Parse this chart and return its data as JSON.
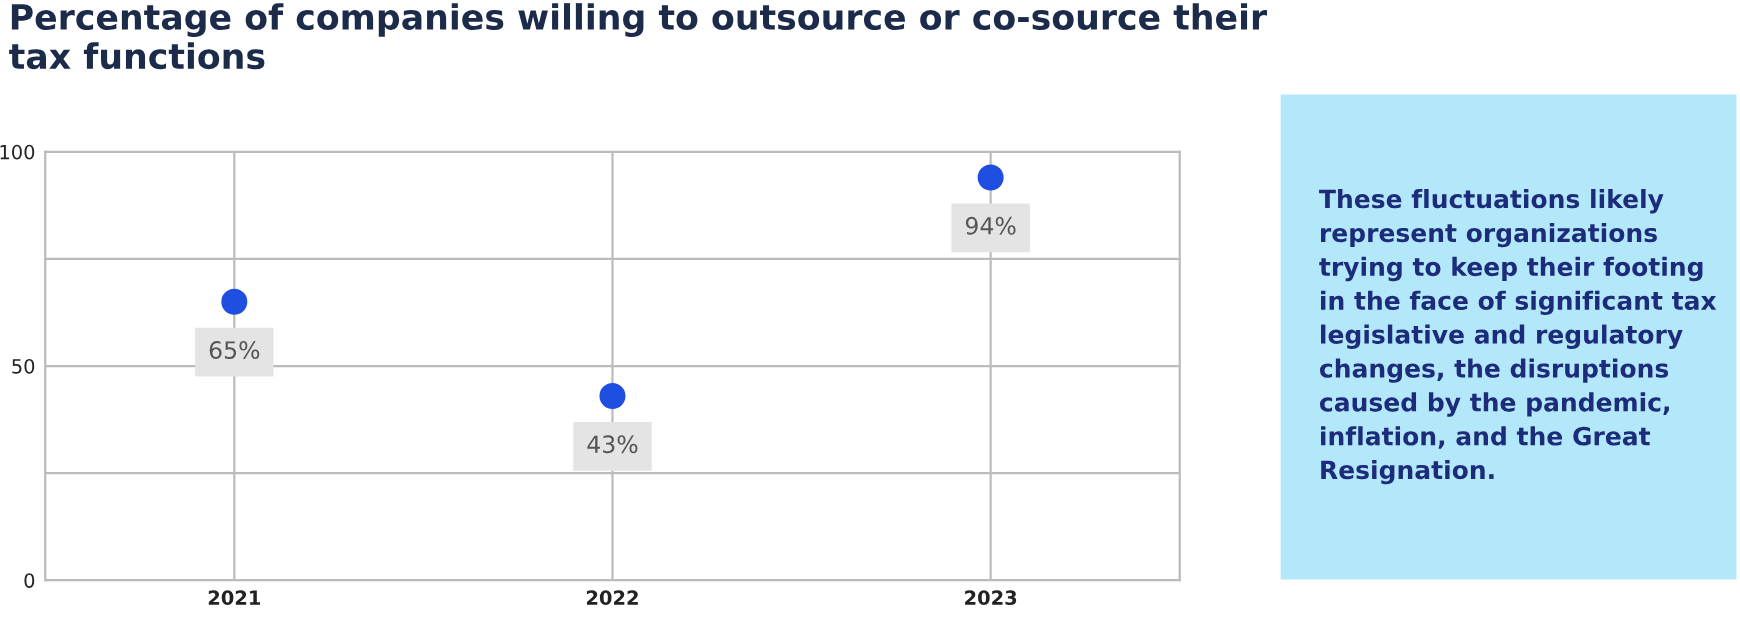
{
  "chart_data": {
    "type": "scatter",
    "title": "Percentage of companies willing to outsource or co-source their\ntax functions",
    "categories": [
      "2021",
      "2022",
      "2023"
    ],
    "series": [
      {
        "color": "#1f4fe0",
        "values": [
          65,
          43,
          94
        ],
        "value_labels": [
          "65%",
          "43%",
          "94%"
        ]
      }
    ],
    "ylim": [
      0,
      100
    ],
    "yticks": [
      0,
      {
        "value": 25,
        "label": null
      },
      50,
      {
        "value": 75,
        "label": null
      },
      100
    ],
    "grid": true,
    "marker": "circle",
    "annotations": [
      "These fluctuations likely represent organizations trying to keep their footing in the face of significant tax legislative and regulatory changes, the disruptions caused by the pandemic, inflation, and the Great Resignation."
    ]
  }
}
